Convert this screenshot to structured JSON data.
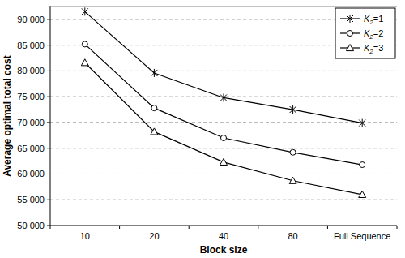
{
  "chart_data": {
    "type": "line",
    "x_label": "Block size",
    "y_label": "Average optimal total cost",
    "categories": [
      "10",
      "20",
      "40",
      "80",
      "Full Sequence"
    ],
    "series": [
      {
        "name": "K2=1",
        "color": "#000000",
        "marker": "star",
        "values": [
          91500,
          79600,
          74800,
          72500,
          69900
        ]
      },
      {
        "name": "K2=2",
        "color": "#000000",
        "marker": "circle",
        "values": [
          85200,
          72800,
          67000,
          64200,
          61800
        ]
      },
      {
        "name": "K2=3",
        "color": "#000000",
        "marker": "triangle",
        "values": [
          81600,
          68200,
          62300,
          58700,
          56000
        ]
      }
    ],
    "ylim": [
      50000,
      92500
    ],
    "yticks": [
      {
        "value": 50000,
        "label": "50 000"
      },
      {
        "value": 55000,
        "label": "55 000"
      },
      {
        "value": 60000,
        "label": "60 000"
      },
      {
        "value": 65000,
        "label": "65 000"
      },
      {
        "value": 70000,
        "label": "70 000"
      },
      {
        "value": 75000,
        "label": "75 000"
      },
      {
        "value": 80000,
        "label": "80 000"
      },
      {
        "value": 85000,
        "label": "85 000"
      },
      {
        "value": 90000,
        "label": "90 000"
      }
    ],
    "grid": true,
    "legend": "top-right"
  }
}
